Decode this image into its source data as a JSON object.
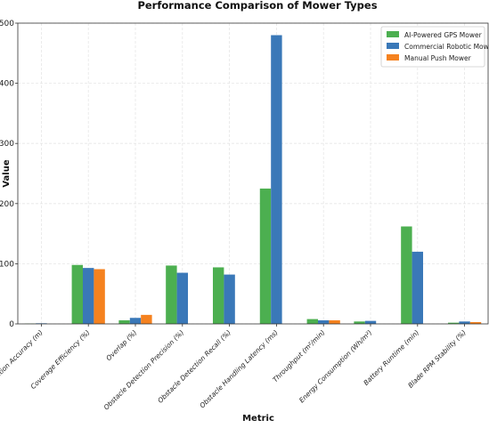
{
  "chart_data": {
    "type": "bar",
    "title": "Performance Comparison of Mower Types",
    "xlabel": "Metric",
    "ylabel": "Value",
    "ylim": [
      0,
      500
    ],
    "yticks": [
      0,
      100,
      200,
      300,
      400,
      500
    ],
    "grid": true,
    "legend_position": "top-right",
    "categories": [
      "Navigation Accuracy (m)",
      "Coverage Efficiency (%)",
      "Overlap (%)",
      "Obstacle Detection Precision (%)",
      "Obstacle Detection Recall (%)",
      "Obstacle Handling Latency (ms)",
      "Throughput (m²/min)",
      "Energy Consumption (Wh/m²)",
      "Battery Runtime (min)",
      "Blade RPM Stability (%)"
    ],
    "series": [
      {
        "name": "AI-Powered GPS Mower",
        "color": "#4caf50",
        "values": [
          0.5,
          98,
          6,
          97,
          94,
          225,
          8,
          4,
          162,
          2
        ]
      },
      {
        "name": "Commercial Robotic Mower",
        "color": "#3a78b8",
        "values": [
          1,
          93,
          10,
          85,
          82,
          480,
          6,
          5,
          120,
          4
        ]
      },
      {
        "name": "Manual Push Mower",
        "color": "#f5821f",
        "values": [
          0,
          91,
          15,
          0,
          0,
          0,
          6,
          0,
          0,
          3
        ]
      }
    ]
  }
}
